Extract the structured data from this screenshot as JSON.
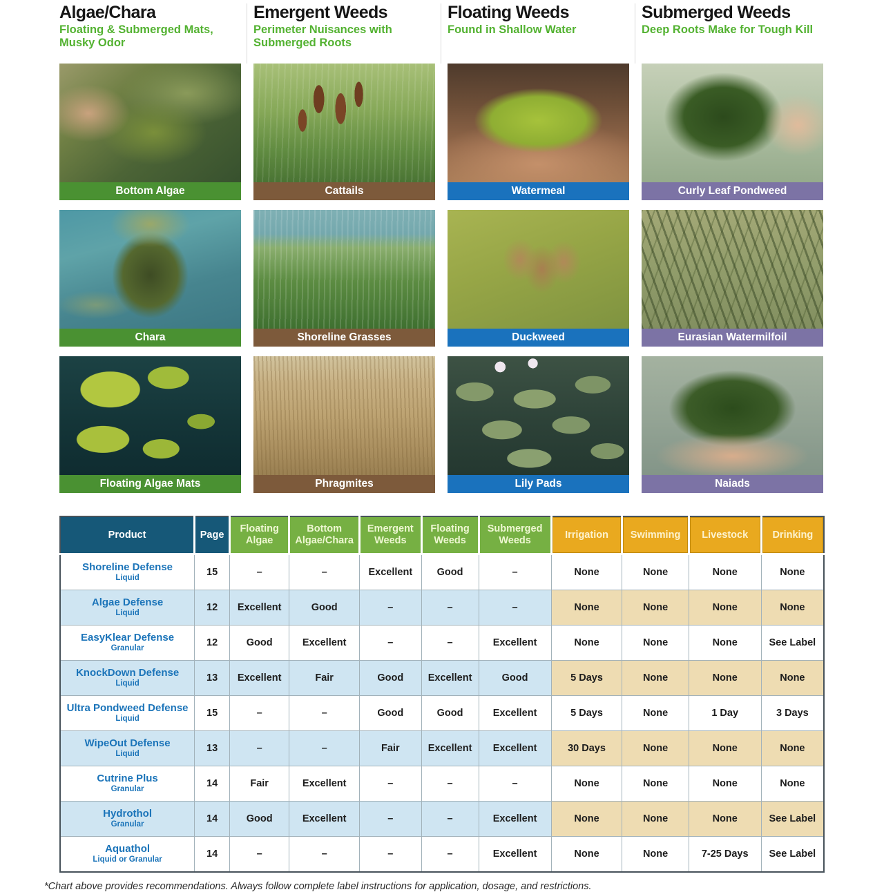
{
  "page": {
    "footnote": "*Chart above provides recommendations. Always follow complete label instructions for application, dosage, and restrictions."
  },
  "colors": {
    "subtitle_green": "#53b231",
    "algae_label": "#4a9132",
    "emergent_label": "#7d5a3b",
    "floating_label": "#1a72bd",
    "submerged_label": "#7c73a5",
    "table_header_dark": "#165878",
    "table_header_green": "#76b043",
    "table_header_gold": "#e9a91f",
    "row_stripe_blue": "#cfe5f2",
    "row_stripe_tan": "#eedcb2",
    "product_name_blue": "#1b74b9"
  },
  "categories": [
    {
      "title": "Algae/Chara",
      "subtitle": "Floating & Submerged Mats, Musky Odor",
      "label_color": "#4a9132",
      "items": [
        {
          "label": "Bottom Algae"
        },
        {
          "label": "Chara"
        },
        {
          "label": "Floating Algae Mats"
        }
      ]
    },
    {
      "title": "Emergent Weeds",
      "subtitle": "Perimeter Nuisances with Submerged Roots",
      "label_color": "#7d5a3b",
      "items": [
        {
          "label": "Cattails"
        },
        {
          "label": "Shoreline Grasses"
        },
        {
          "label": "Phragmites"
        }
      ]
    },
    {
      "title": "Floating Weeds",
      "subtitle": "Found in Shallow Water",
      "label_color": "#1a72bd",
      "items": [
        {
          "label": "Watermeal"
        },
        {
          "label": "Duckweed"
        },
        {
          "label": "Lily Pads"
        }
      ]
    },
    {
      "title": "Submerged Weeds",
      "subtitle": "Deep Roots Make for Tough Kill",
      "label_color": "#7c73a5",
      "items": [
        {
          "label": "Curly Leaf Pondweed"
        },
        {
          "label": "Eurasian Watermilfoil"
        },
        {
          "label": "Naiads"
        }
      ]
    }
  ],
  "table": {
    "columns": [
      {
        "label": "Product",
        "type": "dark"
      },
      {
        "label": "Page",
        "type": "dark"
      },
      {
        "label": "Floating Algae",
        "type": "green"
      },
      {
        "label": "Bottom Algae/Chara",
        "type": "green"
      },
      {
        "label": "Emergent Weeds",
        "type": "green"
      },
      {
        "label": "Floating Weeds",
        "type": "green"
      },
      {
        "label": "Submerged Weeds",
        "type": "green"
      },
      {
        "label": "Irrigation",
        "type": "gold"
      },
      {
        "label": "Swimming",
        "type": "gold"
      },
      {
        "label": "Livestock",
        "type": "gold"
      },
      {
        "label": "Drinking",
        "type": "gold"
      }
    ],
    "rows": [
      {
        "product": "Shoreline Defense",
        "form": "Liquid",
        "page": "15",
        "values": [
          "–",
          "–",
          "Excellent",
          "Good",
          "–",
          "None",
          "None",
          "None",
          "None"
        ]
      },
      {
        "product": "Algae Defense",
        "form": "Liquid",
        "page": "12",
        "values": [
          "Excellent",
          "Good",
          "–",
          "–",
          "–",
          "None",
          "None",
          "None",
          "None"
        ]
      },
      {
        "product": "EasyKlear Defense",
        "form": "Granular",
        "page": "12",
        "values": [
          "Good",
          "Excellent",
          "–",
          "–",
          "Excellent",
          "None",
          "None",
          "None",
          "See Label"
        ]
      },
      {
        "product": "KnockDown Defense",
        "form": "Liquid",
        "page": "13",
        "values": [
          "Excellent",
          "Fair",
          "Good",
          "Excellent",
          "Good",
          "5 Days",
          "None",
          "None",
          "None"
        ]
      },
      {
        "product": "Ultra Pondweed Defense",
        "form": "Liquid",
        "page": "15",
        "values": [
          "–",
          "–",
          "Good",
          "Good",
          "Excellent",
          "5 Days",
          "None",
          "1 Day",
          "3 Days"
        ]
      },
      {
        "product": "WipeOut Defense",
        "form": "Liquid",
        "page": "13",
        "values": [
          "–",
          "–",
          "Fair",
          "Excellent",
          "Excellent",
          "30 Days",
          "None",
          "None",
          "None"
        ]
      },
      {
        "product": "Cutrine Plus",
        "form": "Granular",
        "page": "14",
        "values": [
          "Fair",
          "Excellent",
          "–",
          "–",
          "–",
          "None",
          "None",
          "None",
          "None"
        ]
      },
      {
        "product": "Hydrothol",
        "form": "Granular",
        "page": "14",
        "values": [
          "Good",
          "Excellent",
          "–",
          "–",
          "Excellent",
          "None",
          "None",
          "None",
          "See Label"
        ]
      },
      {
        "product": "Aquathol",
        "form": "Liquid or Granular",
        "page": "14",
        "values": [
          "–",
          "–",
          "–",
          "–",
          "Excellent",
          "None",
          "None",
          "7-25 Days",
          "See Label"
        ]
      }
    ]
  }
}
